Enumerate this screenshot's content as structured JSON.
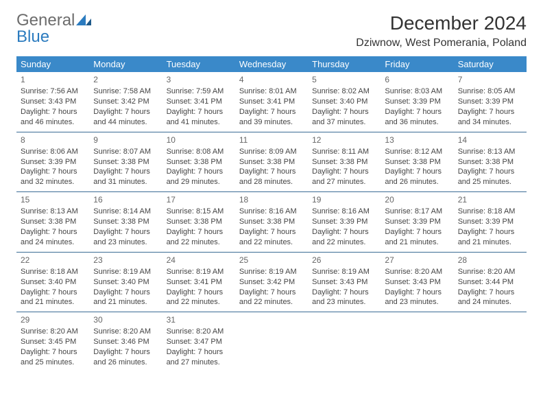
{
  "logo": {
    "text1": "General",
    "text2": "Blue"
  },
  "title": "December 2024",
  "location": "Dziwnow, West Pomerania, Poland",
  "colors": {
    "header_bg": "#3a89c9",
    "header_text": "#ffffff",
    "row_border": "#3a6b94",
    "logo_gray": "#6c6c6c",
    "logo_blue": "#2b7bbf",
    "body_text": "#444444"
  },
  "weekdays": [
    "Sunday",
    "Monday",
    "Tuesday",
    "Wednesday",
    "Thursday",
    "Friday",
    "Saturday"
  ],
  "weeks": [
    [
      {
        "n": "1",
        "sr": "Sunrise: 7:56 AM",
        "ss": "Sunset: 3:43 PM",
        "d1": "Daylight: 7 hours",
        "d2": "and 46 minutes."
      },
      {
        "n": "2",
        "sr": "Sunrise: 7:58 AM",
        "ss": "Sunset: 3:42 PM",
        "d1": "Daylight: 7 hours",
        "d2": "and 44 minutes."
      },
      {
        "n": "3",
        "sr": "Sunrise: 7:59 AM",
        "ss": "Sunset: 3:41 PM",
        "d1": "Daylight: 7 hours",
        "d2": "and 41 minutes."
      },
      {
        "n": "4",
        "sr": "Sunrise: 8:01 AM",
        "ss": "Sunset: 3:41 PM",
        "d1": "Daylight: 7 hours",
        "d2": "and 39 minutes."
      },
      {
        "n": "5",
        "sr": "Sunrise: 8:02 AM",
        "ss": "Sunset: 3:40 PM",
        "d1": "Daylight: 7 hours",
        "d2": "and 37 minutes."
      },
      {
        "n": "6",
        "sr": "Sunrise: 8:03 AM",
        "ss": "Sunset: 3:39 PM",
        "d1": "Daylight: 7 hours",
        "d2": "and 36 minutes."
      },
      {
        "n": "7",
        "sr": "Sunrise: 8:05 AM",
        "ss": "Sunset: 3:39 PM",
        "d1": "Daylight: 7 hours",
        "d2": "and 34 minutes."
      }
    ],
    [
      {
        "n": "8",
        "sr": "Sunrise: 8:06 AM",
        "ss": "Sunset: 3:39 PM",
        "d1": "Daylight: 7 hours",
        "d2": "and 32 minutes."
      },
      {
        "n": "9",
        "sr": "Sunrise: 8:07 AM",
        "ss": "Sunset: 3:38 PM",
        "d1": "Daylight: 7 hours",
        "d2": "and 31 minutes."
      },
      {
        "n": "10",
        "sr": "Sunrise: 8:08 AM",
        "ss": "Sunset: 3:38 PM",
        "d1": "Daylight: 7 hours",
        "d2": "and 29 minutes."
      },
      {
        "n": "11",
        "sr": "Sunrise: 8:09 AM",
        "ss": "Sunset: 3:38 PM",
        "d1": "Daylight: 7 hours",
        "d2": "and 28 minutes."
      },
      {
        "n": "12",
        "sr": "Sunrise: 8:11 AM",
        "ss": "Sunset: 3:38 PM",
        "d1": "Daylight: 7 hours",
        "d2": "and 27 minutes."
      },
      {
        "n": "13",
        "sr": "Sunrise: 8:12 AM",
        "ss": "Sunset: 3:38 PM",
        "d1": "Daylight: 7 hours",
        "d2": "and 26 minutes."
      },
      {
        "n": "14",
        "sr": "Sunrise: 8:13 AM",
        "ss": "Sunset: 3:38 PM",
        "d1": "Daylight: 7 hours",
        "d2": "and 25 minutes."
      }
    ],
    [
      {
        "n": "15",
        "sr": "Sunrise: 8:13 AM",
        "ss": "Sunset: 3:38 PM",
        "d1": "Daylight: 7 hours",
        "d2": "and 24 minutes."
      },
      {
        "n": "16",
        "sr": "Sunrise: 8:14 AM",
        "ss": "Sunset: 3:38 PM",
        "d1": "Daylight: 7 hours",
        "d2": "and 23 minutes."
      },
      {
        "n": "17",
        "sr": "Sunrise: 8:15 AM",
        "ss": "Sunset: 3:38 PM",
        "d1": "Daylight: 7 hours",
        "d2": "and 22 minutes."
      },
      {
        "n": "18",
        "sr": "Sunrise: 8:16 AM",
        "ss": "Sunset: 3:38 PM",
        "d1": "Daylight: 7 hours",
        "d2": "and 22 minutes."
      },
      {
        "n": "19",
        "sr": "Sunrise: 8:16 AM",
        "ss": "Sunset: 3:39 PM",
        "d1": "Daylight: 7 hours",
        "d2": "and 22 minutes."
      },
      {
        "n": "20",
        "sr": "Sunrise: 8:17 AM",
        "ss": "Sunset: 3:39 PM",
        "d1": "Daylight: 7 hours",
        "d2": "and 21 minutes."
      },
      {
        "n": "21",
        "sr": "Sunrise: 8:18 AM",
        "ss": "Sunset: 3:39 PM",
        "d1": "Daylight: 7 hours",
        "d2": "and 21 minutes."
      }
    ],
    [
      {
        "n": "22",
        "sr": "Sunrise: 8:18 AM",
        "ss": "Sunset: 3:40 PM",
        "d1": "Daylight: 7 hours",
        "d2": "and 21 minutes."
      },
      {
        "n": "23",
        "sr": "Sunrise: 8:19 AM",
        "ss": "Sunset: 3:40 PM",
        "d1": "Daylight: 7 hours",
        "d2": "and 21 minutes."
      },
      {
        "n": "24",
        "sr": "Sunrise: 8:19 AM",
        "ss": "Sunset: 3:41 PM",
        "d1": "Daylight: 7 hours",
        "d2": "and 22 minutes."
      },
      {
        "n": "25",
        "sr": "Sunrise: 8:19 AM",
        "ss": "Sunset: 3:42 PM",
        "d1": "Daylight: 7 hours",
        "d2": "and 22 minutes."
      },
      {
        "n": "26",
        "sr": "Sunrise: 8:19 AM",
        "ss": "Sunset: 3:43 PM",
        "d1": "Daylight: 7 hours",
        "d2": "and 23 minutes."
      },
      {
        "n": "27",
        "sr": "Sunrise: 8:20 AM",
        "ss": "Sunset: 3:43 PM",
        "d1": "Daylight: 7 hours",
        "d2": "and 23 minutes."
      },
      {
        "n": "28",
        "sr": "Sunrise: 8:20 AM",
        "ss": "Sunset: 3:44 PM",
        "d1": "Daylight: 7 hours",
        "d2": "and 24 minutes."
      }
    ],
    [
      {
        "n": "29",
        "sr": "Sunrise: 8:20 AM",
        "ss": "Sunset: 3:45 PM",
        "d1": "Daylight: 7 hours",
        "d2": "and 25 minutes."
      },
      {
        "n": "30",
        "sr": "Sunrise: 8:20 AM",
        "ss": "Sunset: 3:46 PM",
        "d1": "Daylight: 7 hours",
        "d2": "and 26 minutes."
      },
      {
        "n": "31",
        "sr": "Sunrise: 8:20 AM",
        "ss": "Sunset: 3:47 PM",
        "d1": "Daylight: 7 hours",
        "d2": "and 27 minutes."
      },
      null,
      null,
      null,
      null
    ]
  ]
}
